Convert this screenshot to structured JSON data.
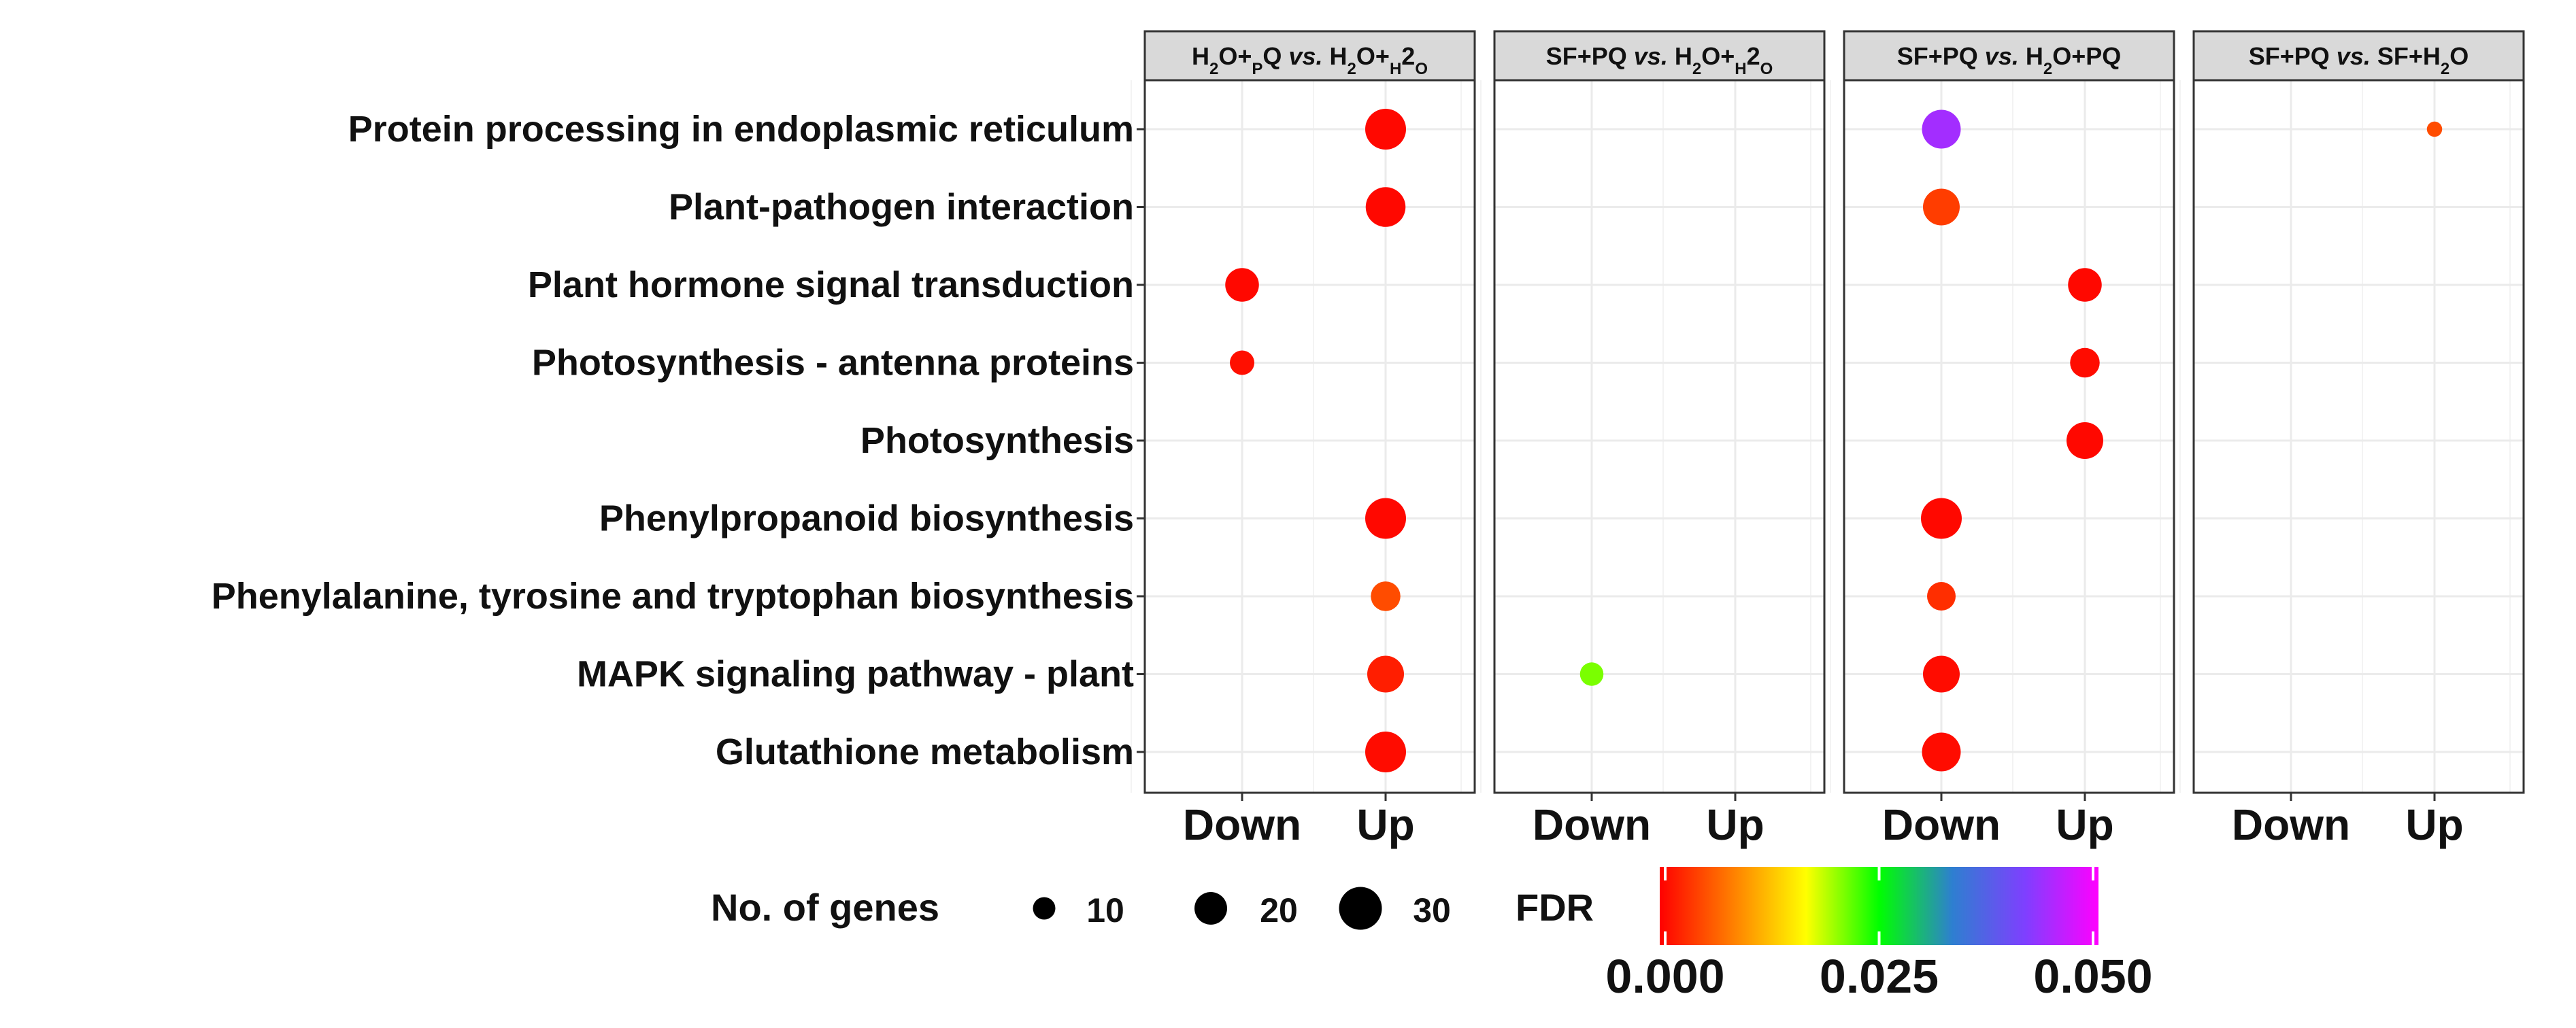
{
  "chart_data": {
    "type": "scatter",
    "title": "",
    "facets": [
      {
        "name_main": "H2O+PQ",
        "name_vs": "vs.",
        "name_ref": "H2O+H2O",
        "sub_main": [
          1,
          4
        ],
        "sub_ref": [
          1,
          4,
          6
        ]
      },
      {
        "name_main": "SF+PQ",
        "name_vs": "vs.",
        "name_ref": "H2O+H2O",
        "sub_main": [],
        "sub_ref": [
          1,
          4,
          6
        ]
      },
      {
        "name_main": "SF+PQ",
        "name_vs": "vs.",
        "name_ref": "H2O+PQ",
        "sub_main": [],
        "sub_ref": [
          1
        ]
      },
      {
        "name_main": "SF+PQ",
        "name_vs": "vs.",
        "name_ref": "SF+H2O",
        "sub_main": [],
        "sub_ref": [
          4
        ]
      }
    ],
    "x_categories": [
      "Down",
      "Up"
    ],
    "pathways": [
      "Protein processing in endoplasmic reticulum",
      "Plant-pathogen interaction",
      "Plant hormone signal transduction",
      "Photosynthesis - antenna proteins",
      "Photosynthesis",
      "Phenylpropanoid biosynthesis",
      "Phenylalanine, tyrosine and tryptophan biosynthesis",
      "MAPK signaling pathway - plant",
      "Glutathione metabolism"
    ],
    "points": [
      {
        "facet": 0,
        "pathway": "Protein processing in endoplasmic reticulum",
        "direction": "Up",
        "genes": 28,
        "fdr": 0.0005
      },
      {
        "facet": 0,
        "pathway": "Plant-pathogen interaction",
        "direction": "Up",
        "genes": 27,
        "fdr": 0.0005
      },
      {
        "facet": 0,
        "pathway": "Plant hormone signal transduction",
        "direction": "Down",
        "genes": 21,
        "fdr": 0.0005
      },
      {
        "facet": 0,
        "pathway": "Photosynthesis - antenna proteins",
        "direction": "Down",
        "genes": 12,
        "fdr": 0.001
      },
      {
        "facet": 0,
        "pathway": "Phenylpropanoid biosynthesis",
        "direction": "Up",
        "genes": 28,
        "fdr": 0.0005
      },
      {
        "facet": 0,
        "pathway": "Phenylalanine, tyrosine and tryptophan biosynthesis",
        "direction": "Up",
        "genes": 17,
        "fdr": 0.005
      },
      {
        "facet": 0,
        "pathway": "MAPK signaling pathway - plant",
        "direction": "Up",
        "genes": 24,
        "fdr": 0.002
      },
      {
        "facet": 0,
        "pathway": "Glutathione metabolism",
        "direction": "Up",
        "genes": 28,
        "fdr": 0.0008
      },
      {
        "facet": 1,
        "pathway": "MAPK signaling pathway - plant",
        "direction": "Down",
        "genes": 11,
        "fdr": 0.021
      },
      {
        "facet": 2,
        "pathway": "Protein processing in endoplasmic reticulum",
        "direction": "Down",
        "genes": 26,
        "fdr": 0.044
      },
      {
        "facet": 2,
        "pathway": "Plant-pathogen interaction",
        "direction": "Down",
        "genes": 24,
        "fdr": 0.004
      },
      {
        "facet": 2,
        "pathway": "Plant hormone signal transduction",
        "direction": "Up",
        "genes": 21,
        "fdr": 0.0005
      },
      {
        "facet": 2,
        "pathway": "Photosynthesis - antenna proteins",
        "direction": "Up",
        "genes": 17,
        "fdr": 0.0008
      },
      {
        "facet": 2,
        "pathway": "Photosynthesis",
        "direction": "Up",
        "genes": 24,
        "fdr": 0.0005
      },
      {
        "facet": 2,
        "pathway": "Phenylpropanoid biosynthesis",
        "direction": "Down",
        "genes": 28,
        "fdr": 0.0005
      },
      {
        "facet": 2,
        "pathway": "Phenylalanine, tyrosine and tryptophan biosynthesis",
        "direction": "Down",
        "genes": 16,
        "fdr": 0.003
      },
      {
        "facet": 2,
        "pathway": "MAPK signaling pathway - plant",
        "direction": "Down",
        "genes": 24,
        "fdr": 0.0008
      },
      {
        "facet": 2,
        "pathway": "Glutathione metabolism",
        "direction": "Down",
        "genes": 26,
        "fdr": 0.0008
      },
      {
        "facet": 3,
        "pathway": "Protein processing in endoplasmic reticulum",
        "direction": "Up",
        "genes": 3,
        "fdr": 0.005
      }
    ],
    "size_legend": {
      "title": "No. of genes",
      "values": [
        10,
        20,
        30
      ]
    },
    "color_legend": {
      "title": "FDR",
      "min": 0.0,
      "max": 0.05,
      "ticks": [
        "0.000",
        "0.025",
        "0.050"
      ]
    },
    "colors": {
      "panel_border": "#333333",
      "strip_fill": "#d9d9d9",
      "grid": "#ebebeb",
      "point_legend": "#000000",
      "gradient": [
        "#ff0000",
        "#ff7f00",
        "#ffff00",
        "#00ff00",
        "#2e7fd0",
        "#7f3fff",
        "#ff00ff"
      ]
    }
  }
}
